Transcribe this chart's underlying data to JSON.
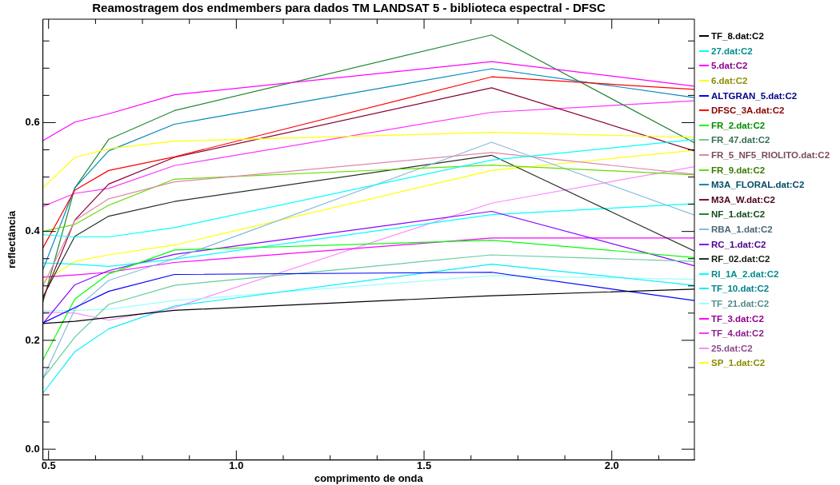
{
  "chart_data": {
    "type": "line",
    "title": "Reamostragem dos endmembers para dados TM LANDSAT 5 - biblioteca espectral - DFSC",
    "xlabel": "comprimento de onda",
    "ylabel": "reflectância",
    "x": [
      0.485,
      0.57,
      0.66,
      0.835,
      1.68,
      2.22
    ],
    "xlim": [
      0.485,
      2.22
    ],
    "ylim": [
      -0.02,
      0.79
    ],
    "xticks": [
      {
        "value": 0.5,
        "label": "0.5"
      },
      {
        "value": 0.625,
        "label": null
      },
      {
        "value": 0.75,
        "label": null
      },
      {
        "value": 0.875,
        "label": null
      },
      {
        "value": 1.0,
        "label": "1.0"
      },
      {
        "value": 1.125,
        "label": null
      },
      {
        "value": 1.25,
        "label": null
      },
      {
        "value": 1.375,
        "label": null
      },
      {
        "value": 1.5,
        "label": "1.5"
      },
      {
        "value": 1.625,
        "label": null
      },
      {
        "value": 1.75,
        "label": null
      },
      {
        "value": 1.875,
        "label": null
      },
      {
        "value": 2.0,
        "label": "2.0"
      },
      {
        "value": 2.125,
        "label": null
      }
    ],
    "yticks": [
      {
        "value": 0,
        "label": "0.0"
      },
      {
        "value": 0.05,
        "label": null
      },
      {
        "value": 0.1,
        "label": null
      },
      {
        "value": 0.15,
        "label": null
      },
      {
        "value": 0.2,
        "label": "0.2"
      },
      {
        "value": 0.25,
        "label": null
      },
      {
        "value": 0.3,
        "label": null
      },
      {
        "value": 0.35,
        "label": null
      },
      {
        "value": 0.4,
        "label": "0.4"
      },
      {
        "value": 0.45,
        "label": null
      },
      {
        "value": 0.5,
        "label": null
      },
      {
        "value": 0.55,
        "label": null
      },
      {
        "value": 0.6,
        "label": "0.6"
      },
      {
        "value": 0.65,
        "label": null
      },
      {
        "value": 0.7,
        "label": null
      },
      {
        "value": 0.75,
        "label": null
      }
    ],
    "grid": false,
    "legend": "right",
    "marker": "none",
    "line_style": "solid",
    "series": [
      {
        "name": "TF_8.dat:C2",
        "color": "#000000",
        "values": [
          0.231,
          0.235,
          0.242,
          0.255,
          0.282,
          0.294
        ]
      },
      {
        "name": "27.dat:C2",
        "color": "#00ffff",
        "values": [
          0.394,
          0.39,
          0.39,
          0.407,
          0.531,
          0.569
        ]
      },
      {
        "name": "5.dat:C2",
        "color": "#ff00ff",
        "values": [
          0.567,
          0.601,
          0.616,
          0.651,
          0.712,
          0.667
        ]
      },
      {
        "name": "6.dat:C2",
        "color": "#ffff00",
        "values": [
          0.48,
          0.536,
          0.552,
          0.566,
          0.582,
          0.573
        ]
      },
      {
        "name": "ALTGRAN_5.dat:C2",
        "color": "#0000ff",
        "values": [
          0.232,
          0.26,
          0.29,
          0.321,
          0.325,
          0.273
        ]
      },
      {
        "name": "DFSC_3A.dat:C2",
        "color": "#ff0000",
        "values": [
          0.37,
          0.476,
          0.512,
          0.537,
          0.684,
          0.661
        ]
      },
      {
        "name": "FR_2.dat:C2",
        "color": "#00ff00",
        "values": [
          0.164,
          0.276,
          0.322,
          0.366,
          0.384,
          0.352
        ]
      },
      {
        "name": "FR_47.dat:C2",
        "color": "#66cc99",
        "values": [
          0.13,
          0.206,
          0.266,
          0.301,
          0.357,
          0.345
        ]
      },
      {
        "name": "FR_5_NF5_RIOLITO.dat:C2",
        "color": "#dd88aa",
        "values": [
          0.3,
          0.42,
          0.46,
          0.491,
          0.545,
          0.505
        ]
      },
      {
        "name": "FR_9.dat:C2",
        "color": "#66dd00",
        "values": [
          0.4,
          0.413,
          0.448,
          0.496,
          0.522,
          0.504
        ]
      },
      {
        "name": "M3A_FLORAL.dat:C2",
        "color": "#0088bb",
        "values": [
          0.33,
          0.48,
          0.548,
          0.597,
          0.699,
          0.646
        ]
      },
      {
        "name": "M3A_W.dat:C2",
        "color": "#880033",
        "values": [
          0.276,
          0.421,
          0.487,
          0.536,
          0.664,
          0.548
        ]
      },
      {
        "name": "NF_1.dat:C2",
        "color": "#228833",
        "values": [
          0.27,
          0.48,
          0.569,
          0.622,
          0.761,
          0.563
        ]
      },
      {
        "name": "RBA_1.dat:C2",
        "color": "#88bbdd",
        "values": [
          0.13,
          0.257,
          0.31,
          0.35,
          0.564,
          0.43
        ]
      },
      {
        "name": "RC_1.dat:C2",
        "color": "#8800ff",
        "values": [
          0.231,
          0.302,
          0.328,
          0.358,
          0.437,
          0.337
        ]
      },
      {
        "name": "RF_02.dat:C2",
        "color": "#223322",
        "values": [
          0.28,
          0.391,
          0.428,
          0.455,
          0.54,
          0.364
        ]
      },
      {
        "name": "RI_1A_2.dat:C2",
        "color": "#00ffff",
        "values": [
          0.342,
          0.34,
          0.336,
          0.349,
          0.431,
          0.451
        ]
      },
      {
        "name": "TF_10.dat:C2",
        "color": "#00eeff",
        "values": [
          0.103,
          0.179,
          0.221,
          0.263,
          0.34,
          0.301
        ]
      },
      {
        "name": "TF_21.dat:C2",
        "color": "#99ffff",
        "values": [
          0.254,
          0.255,
          0.257,
          0.273,
          0.319,
          0.312
        ]
      },
      {
        "name": "TF_3.dat:C2",
        "color": "#ff00ff",
        "values": [
          0.316,
          0.32,
          0.325,
          0.343,
          0.388,
          0.388
        ]
      },
      {
        "name": "TF_4.dat:C2",
        "color": "#ff33ff",
        "values": [
          0.446,
          0.47,
          0.479,
          0.521,
          0.619,
          0.64
        ]
      },
      {
        "name": "25.dat:C2",
        "color": "#ff88ff",
        "values": [
          0.252,
          0.25,
          0.237,
          0.26,
          0.452,
          0.519
        ]
      },
      {
        "name": "SP_1.dat:C2",
        "color": "#ffff00",
        "values": [
          0.307,
          0.345,
          0.357,
          0.375,
          0.512,
          0.549
        ]
      }
    ]
  }
}
